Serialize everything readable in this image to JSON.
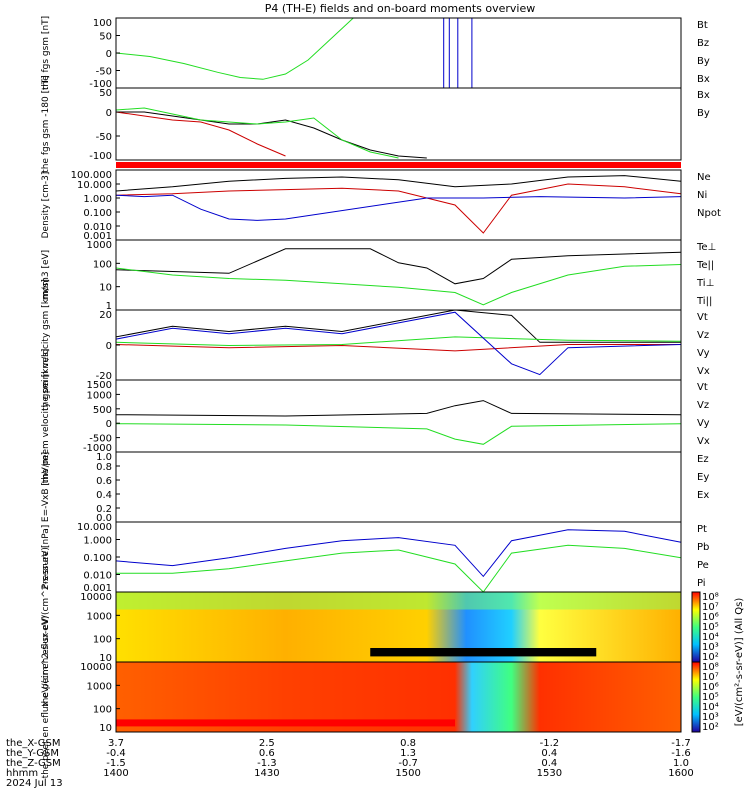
{
  "title": "P4 (TH-E) fields and on-board moments overview",
  "colors": {
    "black": "#000000",
    "red": "#cc0000",
    "green": "#22dd22",
    "blue": "#0000cc",
    "sep": "#ff0000"
  },
  "chart_data": [
    {
      "type": "line",
      "id": "p1",
      "ylabel": "the fgs gsm [nT]",
      "yticks": [
        "100",
        "50",
        "0",
        "-50",
        "-100"
      ],
      "ylim": [
        -100,
        100
      ],
      "legend": [
        {
          "name": "Bt",
          "color": "black"
        },
        {
          "name": "Bz",
          "color": "red"
        },
        {
          "name": "By",
          "color": "green"
        },
        {
          "name": "Bx",
          "color": "blue"
        }
      ],
      "series": [
        {
          "name": "By",
          "color": "green",
          "x": [
            0,
            0.06,
            0.12,
            0.18,
            0.22,
            0.26,
            0.3,
            0.34,
            0.38,
            0.42
          ],
          "y": [
            0,
            -10,
            -30,
            -55,
            -70,
            -75,
            -60,
            -20,
            40,
            100
          ]
        },
        {
          "name": "Bx",
          "color": "blue",
          "x": [
            0.58,
            0.58,
            0.59,
            0.59,
            0.605,
            0.605,
            0.63,
            0.63
          ],
          "y": [
            -100,
            100,
            100,
            -100,
            -100,
            100,
            100,
            -100
          ]
        }
      ]
    },
    {
      "type": "line",
      "id": "p2",
      "ylabel": "the fgs gsm -180 [nT]",
      "yticks": [
        "50",
        "0",
        "-50",
        "-100"
      ],
      "ylim": [
        -120,
        60
      ],
      "legend": [
        {
          "name": "Bx",
          "color": "black"
        },
        {
          "name": "By",
          "color": "green"
        }
      ],
      "series": [
        {
          "name": "Bx",
          "color": "black",
          "x": [
            0,
            0.05,
            0.1,
            0.15,
            0.2,
            0.25,
            0.3,
            0.35,
            0.4,
            0.45,
            0.5,
            0.55
          ],
          "y": [
            0,
            0,
            -10,
            -20,
            -30,
            -30,
            -20,
            -40,
            -70,
            -95,
            -110,
            -115
          ]
        },
        {
          "name": "Bz",
          "color": "red",
          "x": [
            0,
            0.05,
            0.1,
            0.15,
            0.2,
            0.25,
            0.3
          ],
          "y": [
            0,
            -10,
            -20,
            -25,
            -45,
            -80,
            -110
          ]
        },
        {
          "name": "By",
          "color": "green",
          "x": [
            0,
            0.05,
            0.1,
            0.15,
            0.2,
            0.25,
            0.3,
            0.35,
            0.4,
            0.45,
            0.5
          ],
          "y": [
            5,
            10,
            -5,
            -20,
            -25,
            -30,
            -25,
            -15,
            -70,
            -100,
            -115
          ]
        }
      ]
    },
    {
      "type": "line",
      "id": "p3",
      "ylabel": "Density [cm-3]",
      "yticks": [
        "100.000",
        "10.000",
        "1.000",
        "0.100",
        "0.010",
        "0.001"
      ],
      "ylim": [
        -3,
        2
      ],
      "log": true,
      "legend": [
        {
          "name": "Ne",
          "color": "red"
        },
        {
          "name": "Ni",
          "color": "black"
        },
        {
          "name": "Npot",
          "color": "blue"
        }
      ],
      "series": [
        {
          "name": "Ni",
          "color": "black",
          "x": [
            0,
            0.1,
            0.2,
            0.3,
            0.4,
            0.5,
            0.6,
            0.7,
            0.8,
            0.9,
            1
          ],
          "y": [
            0.5,
            0.8,
            1.2,
            1.4,
            1.5,
            1.3,
            0.8,
            1.0,
            1.5,
            1.6,
            1.2
          ]
        },
        {
          "name": "Ne",
          "color": "red",
          "x": [
            0,
            0.1,
            0.2,
            0.3,
            0.4,
            0.5,
            0.6,
            0.65,
            0.7,
            0.8,
            0.9,
            1
          ],
          "y": [
            0.2,
            0.3,
            0.5,
            0.6,
            0.7,
            0.5,
            -0.5,
            -2.5,
            0.2,
            1.0,
            0.8,
            0.3
          ]
        },
        {
          "name": "Npot",
          "color": "blue",
          "x": [
            0,
            0.05,
            0.1,
            0.15,
            0.2,
            0.25,
            0.3,
            0.55,
            0.65,
            0.75,
            0.9,
            1
          ],
          "y": [
            0.2,
            0.1,
            0.2,
            -0.8,
            -1.5,
            -1.6,
            -1.5,
            0.0,
            0.0,
            0.1,
            0.0,
            0.1
          ]
        }
      ]
    },
    {
      "type": "line",
      "id": "p4",
      "ylabel": "mom3 [eV]",
      "yticks": [
        "1000",
        "100",
        "10",
        "1"
      ],
      "ylim": [
        0,
        4
      ],
      "log": true,
      "legend": [
        {
          "name": "Te⊥",
          "color": "red"
        },
        {
          "name": "Te||",
          "color": "black"
        },
        {
          "name": "Ti⊥",
          "color": "blue"
        },
        {
          "name": "Ti||",
          "color": "green"
        }
      ],
      "series": [
        {
          "name": "Te",
          "color": "black",
          "x": [
            0,
            0.1,
            0.2,
            0.25,
            0.3,
            0.45,
            0.5,
            0.55,
            0.6,
            0.65,
            0.7,
            0.8,
            0.9,
            1
          ],
          "y": [
            2.3,
            2.2,
            2.1,
            2.8,
            3.5,
            3.5,
            2.7,
            2.4,
            1.5,
            1.8,
            2.9,
            3.1,
            3.2,
            3.3
          ]
        },
        {
          "name": "Ti",
          "color": "green",
          "x": [
            0,
            0.1,
            0.2,
            0.3,
            0.4,
            0.5,
            0.6,
            0.65,
            0.7,
            0.8,
            0.9,
            1
          ],
          "y": [
            2.4,
            2.0,
            1.8,
            1.7,
            1.5,
            1.3,
            1.0,
            0.3,
            1.0,
            2.0,
            2.5,
            2.6
          ]
        }
      ]
    },
    {
      "type": "line",
      "id": "p5",
      "ylabel": "the peim velocity gsm [km/s]",
      "yticks": [
        "20",
        "0",
        "-20"
      ],
      "ylim": [
        -35,
        30
      ],
      "legend": [
        {
          "name": "Vt",
          "color": "black"
        },
        {
          "name": "Vz",
          "color": "red"
        },
        {
          "name": "Vy",
          "color": "green"
        },
        {
          "name": "Vx",
          "color": "blue"
        }
      ],
      "series": [
        {
          "name": "Vt",
          "color": "black",
          "x": [
            0,
            0.1,
            0.2,
            0.3,
            0.4,
            0.5,
            0.6,
            0.7,
            0.75,
            0.8,
            1
          ],
          "y": [
            5,
            15,
            10,
            15,
            10,
            20,
            30,
            25,
            0,
            0,
            0
          ]
        },
        {
          "name": "Vz",
          "color": "red",
          "x": [
            0,
            0.2,
            0.4,
            0.6,
            0.8,
            1
          ],
          "y": [
            -2,
            -5,
            -3,
            -8,
            -2,
            -2
          ]
        },
        {
          "name": "Vy",
          "color": "green",
          "x": [
            0,
            0.2,
            0.4,
            0.6,
            0.8,
            1
          ],
          "y": [
            0,
            -3,
            -2,
            5,
            2,
            1
          ]
        },
        {
          "name": "Vx",
          "color": "blue",
          "x": [
            0,
            0.1,
            0.2,
            0.3,
            0.4,
            0.5,
            0.6,
            0.7,
            0.75,
            0.8,
            1
          ],
          "y": [
            3,
            13,
            8,
            13,
            8,
            18,
            28,
            -20,
            -30,
            -5,
            -2
          ]
        }
      ]
    },
    {
      "type": "line",
      "id": "p6",
      "ylabel": "the peem velocity gsm [km/s]",
      "yticks": [
        "1500",
        "1000",
        "500",
        "0",
        "-500",
        "-1000"
      ],
      "ylim": [
        -1200,
        1600
      ],
      "legend": [
        {
          "name": "Vt",
          "color": "black"
        },
        {
          "name": "Vz",
          "color": "red"
        },
        {
          "name": "Vy",
          "color": "green"
        },
        {
          "name": "Vx",
          "color": "blue"
        }
      ],
      "series": [
        {
          "name": "Vt",
          "color": "black",
          "x": [
            0,
            0.3,
            0.55,
            0.6,
            0.65,
            0.7,
            1
          ],
          "y": [
            250,
            200,
            300,
            600,
            800,
            300,
            250
          ]
        },
        {
          "name": "Vy",
          "color": "green",
          "x": [
            0,
            0.3,
            0.55,
            0.6,
            0.65,
            0.7,
            1
          ],
          "y": [
            -100,
            -150,
            -300,
            -700,
            -900,
            -200,
            -100
          ]
        }
      ]
    },
    {
      "type": "line",
      "id": "p7",
      "ylabel": "E=-VxB [mV/m]",
      "yticks": [
        "1.0",
        "0.8",
        "0.6",
        "0.4",
        "0.2",
        "0.0"
      ],
      "ylim": [
        0,
        1
      ],
      "legend": [
        {
          "name": "Ez",
          "color": "red"
        },
        {
          "name": "Ey",
          "color": "green"
        },
        {
          "name": "Ex",
          "color": "blue"
        }
      ],
      "series": []
    },
    {
      "type": "line",
      "id": "p8",
      "ylabel": "Pressure [nPa]",
      "yticks": [
        "10.000",
        "1.000",
        "0.100",
        "0.010",
        "0.001"
      ],
      "ylim": [
        -3,
        1.5
      ],
      "log": true,
      "legend": [
        {
          "name": "Pt",
          "color": "black"
        },
        {
          "name": "Pb",
          "color": "red"
        },
        {
          "name": "Pe",
          "color": "green"
        },
        {
          "name": "Pi",
          "color": "blue"
        }
      ],
      "series": [
        {
          "name": "Pt",
          "color": "blue",
          "x": [
            0,
            0.1,
            0.2,
            0.3,
            0.4,
            0.5,
            0.6,
            0.65,
            0.7,
            0.8,
            0.9,
            1
          ],
          "y": [
            -1,
            -1.3,
            -0.8,
            -0.2,
            0.3,
            0.5,
            0.0,
            -2.0,
            0.3,
            1.0,
            0.9,
            0.2
          ]
        },
        {
          "name": "Pe",
          "color": "green",
          "x": [
            0,
            0.1,
            0.2,
            0.3,
            0.4,
            0.5,
            0.6,
            0.65,
            0.7,
            0.8,
            0.9,
            1
          ],
          "y": [
            -1.8,
            -1.8,
            -1.5,
            -1.0,
            -0.5,
            -0.3,
            -1.2,
            -3.0,
            -0.5,
            0.0,
            -0.2,
            -0.8
          ]
        }
      ]
    },
    {
      "type": "heatmap",
      "id": "p9",
      "ylabel": "the peir en eflux eV/(cm^2-s-sr-eV)",
      "yticks": [
        "10000",
        "1000",
        "100",
        "10"
      ]
    },
    {
      "type": "heatmap",
      "id": "p10",
      "ylabel": "the peer en eflux eV/(cm^2-s-sr-eV)",
      "yticks": [
        "10000",
        "1000",
        "100",
        "10"
      ]
    }
  ],
  "colorbar": {
    "ticks": [
      "10⁸",
      "10⁷",
      "10⁶",
      "10⁵",
      "10⁴",
      "10³",
      "10²"
    ],
    "label": "[eV/(cm²-s-sr-eV)] (All Qs)"
  },
  "xaxis": {
    "rows": [
      {
        "label": "the_X-GSM",
        "values": [
          "3.7",
          "2.5",
          "0.8",
          "-1.2",
          "-1.7"
        ]
      },
      {
        "label": "the_Y-GSM",
        "values": [
          "-0.4",
          "0.6",
          "1.3",
          "0.4",
          "-1.6"
        ]
      },
      {
        "label": "the_Z-GSM",
        "values": [
          "-1.5",
          "-1.3",
          "-0.7",
          "0.4",
          "1.0"
        ]
      },
      {
        "label": "hhmm",
        "values": [
          "1400",
          "1430",
          "1500",
          "1530",
          "1600"
        ]
      }
    ],
    "date": "2024 Jul 13"
  }
}
